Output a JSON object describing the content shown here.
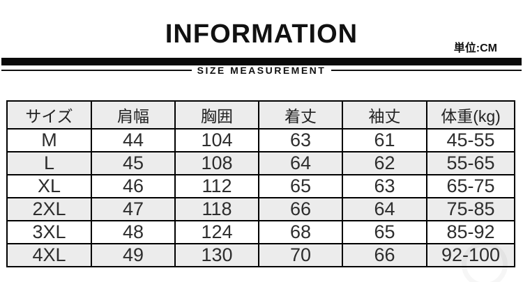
{
  "header": {
    "title": "INFORMATION",
    "unit_label": "単位:CM",
    "section_label": "SIZE MEASUREMENT"
  },
  "table": {
    "headers": [
      "サイズ",
      "肩幅",
      "胸囲",
      "着丈",
      "袖丈",
      "体重(kg)"
    ],
    "rows": [
      [
        "M",
        "44",
        "104",
        "63",
        "61",
        "45-55"
      ],
      [
        "L",
        "45",
        "108",
        "64",
        "62",
        "55-65"
      ],
      [
        "XL",
        "46",
        "112",
        "65",
        "63",
        "65-75"
      ],
      [
        "2XL",
        "47",
        "118",
        "66",
        "64",
        "75-85"
      ],
      [
        "3XL",
        "48",
        "124",
        "68",
        "65",
        "85-92"
      ],
      [
        "4XL",
        "49",
        "130",
        "70",
        "66",
        "92-100"
      ]
    ]
  },
  "colors": {
    "bar": "#0a0a0a",
    "border": "#000000",
    "row_shade": "#ececec",
    "text": "#2d2d2d",
    "background": "#ffffff"
  }
}
